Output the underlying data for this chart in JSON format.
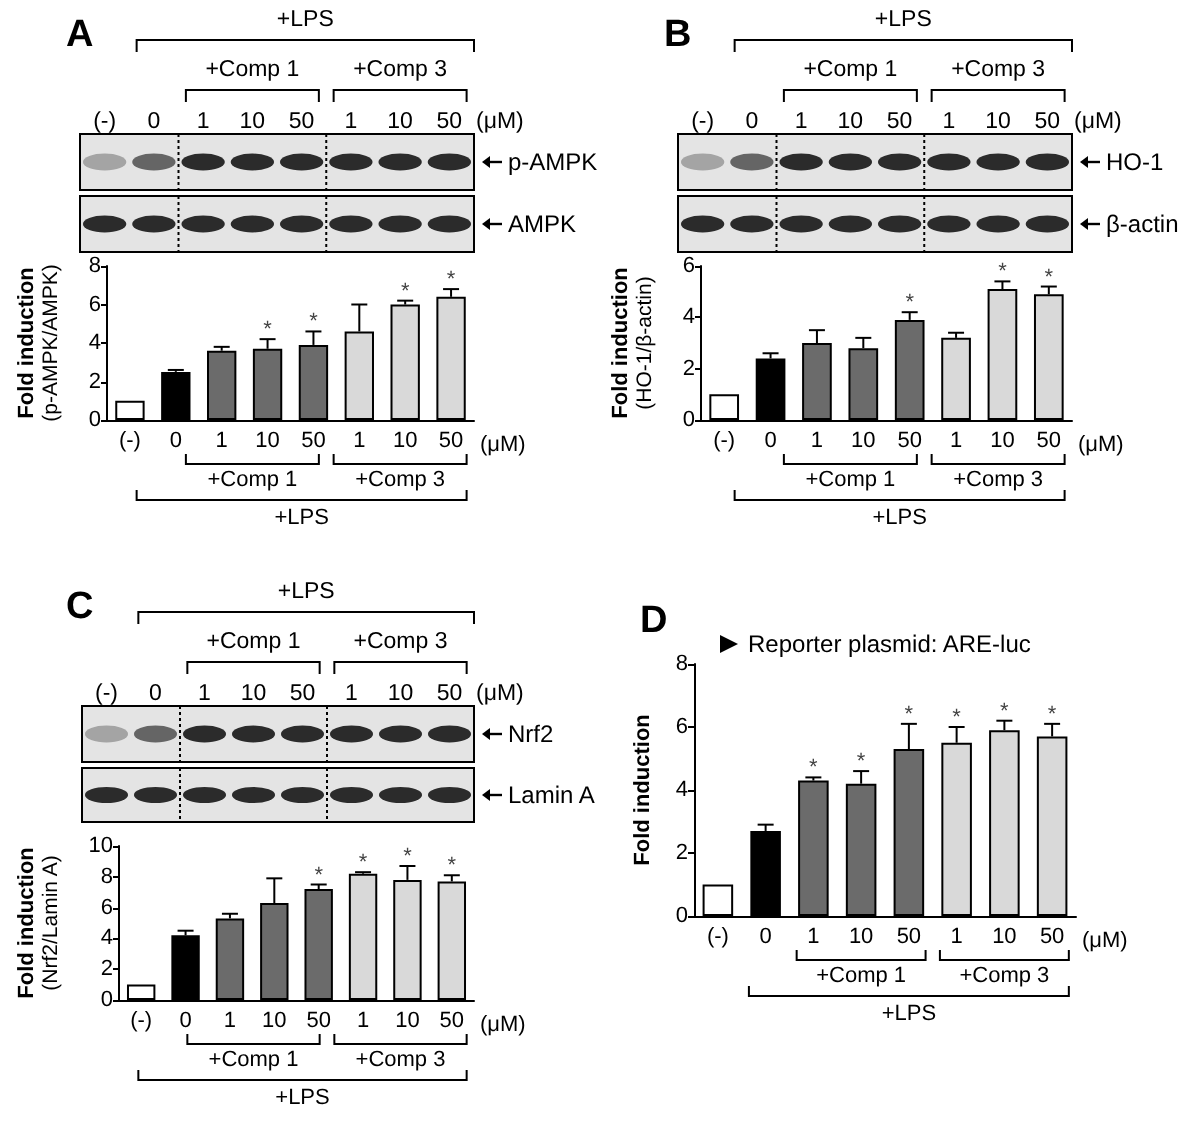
{
  "chart_data": [
    {
      "type": "bar",
      "title": "A",
      "xlabel": "(μM)",
      "ylabel": "Fold induction\n(p-AMPK/AMPK)",
      "categories": [
        "(-)",
        "0",
        "1",
        "10",
        "50",
        "1",
        "10",
        "50"
      ],
      "values": [
        1.0,
        2.5,
        3.6,
        3.7,
        3.9,
        4.6,
        6.0,
        6.4
      ],
      "errors": [
        null,
        0.1,
        0.2,
        0.5,
        0.7,
        1.4,
        0.2,
        0.4
      ],
      "value_labels": [
        null,
        null,
        null,
        "*",
        "*",
        null,
        "*",
        "*"
      ],
      "colors": [
        "#ffffff",
        "#000000",
        "#6b6b6b",
        "#6b6b6b",
        "#6b6b6b",
        "#d9d9d9",
        "#d9d9d9",
        "#d9d9d9"
      ],
      "ylim": [
        0,
        8
      ],
      "yticks": [
        0,
        2,
        4,
        6,
        8
      ],
      "annotations": [
        "+Comp 1",
        "+Comp 3",
        "+LPS",
        "p-AMPK",
        "AMPK"
      ]
    },
    {
      "type": "bar",
      "title": "B",
      "xlabel": "(μM)",
      "ylabel": "Fold induction\n(HO-1/β-actin)",
      "categories": [
        "(-)",
        "0",
        "1",
        "10",
        "50",
        "1",
        "10",
        "50"
      ],
      "values": [
        1.0,
        2.4,
        3.0,
        2.8,
        3.9,
        3.2,
        5.1,
        4.9
      ],
      "errors": [
        null,
        0.2,
        0.5,
        0.4,
        0.3,
        0.2,
        0.3,
        0.3
      ],
      "value_labels": [
        null,
        null,
        null,
        null,
        "*",
        null,
        "*",
        "*"
      ],
      "colors": [
        "#ffffff",
        "#000000",
        "#6b6b6b",
        "#6b6b6b",
        "#6b6b6b",
        "#d9d9d9",
        "#d9d9d9",
        "#d9d9d9"
      ],
      "ylim": [
        0,
        6
      ],
      "yticks": [
        0,
        2,
        4,
        6
      ],
      "annotations": [
        "+Comp 1",
        "+Comp 3",
        "+LPS",
        "HO-1",
        "β-actin"
      ]
    },
    {
      "type": "bar",
      "title": "C",
      "xlabel": "(μM)",
      "ylabel": "Fold induction\n(Nrf2/Lamin A)",
      "categories": [
        "(-)",
        "0",
        "1",
        "10",
        "50",
        "1",
        "10",
        "50"
      ],
      "values": [
        1.0,
        4.2,
        5.3,
        6.3,
        7.2,
        8.2,
        7.8,
        7.7
      ],
      "errors": [
        null,
        0.3,
        0.3,
        1.6,
        0.3,
        0.1,
        0.9,
        0.4
      ],
      "value_labels": [
        null,
        null,
        null,
        null,
        "*",
        "*",
        "*",
        "*"
      ],
      "colors": [
        "#ffffff",
        "#000000",
        "#6b6b6b",
        "#6b6b6b",
        "#6b6b6b",
        "#d9d9d9",
        "#d9d9d9",
        "#d9d9d9"
      ],
      "ylim": [
        0,
        10
      ],
      "yticks": [
        0,
        2,
        4,
        6,
        8,
        10
      ],
      "annotations": [
        "+Comp 1",
        "+Comp 3",
        "+LPS",
        "Nrf2",
        "Lamin A"
      ]
    },
    {
      "type": "bar",
      "title": "D",
      "subtitle": "Reporter plasmid: ARE-luc",
      "xlabel": "(μM)",
      "ylabel": "Fold induction",
      "categories": [
        "(-)",
        "0",
        "1",
        "10",
        "50",
        "1",
        "10",
        "50"
      ],
      "values": [
        1.0,
        2.7,
        4.3,
        4.2,
        5.3,
        5.5,
        5.9,
        5.7
      ],
      "errors": [
        null,
        0.2,
        0.1,
        0.4,
        0.8,
        0.5,
        0.3,
        0.4
      ],
      "value_labels": [
        null,
        null,
        "*",
        "*",
        "*",
        "*",
        "*",
        "*"
      ],
      "colors": [
        "#ffffff",
        "#000000",
        "#6b6b6b",
        "#6b6b6b",
        "#6b6b6b",
        "#d9d9d9",
        "#d9d9d9",
        "#d9d9d9"
      ],
      "ylim": [
        0,
        8
      ],
      "yticks": [
        0,
        2,
        4,
        6,
        8
      ],
      "annotations": [
        "+Comp 1",
        "+Comp 3",
        "+LPS"
      ]
    }
  ]
}
